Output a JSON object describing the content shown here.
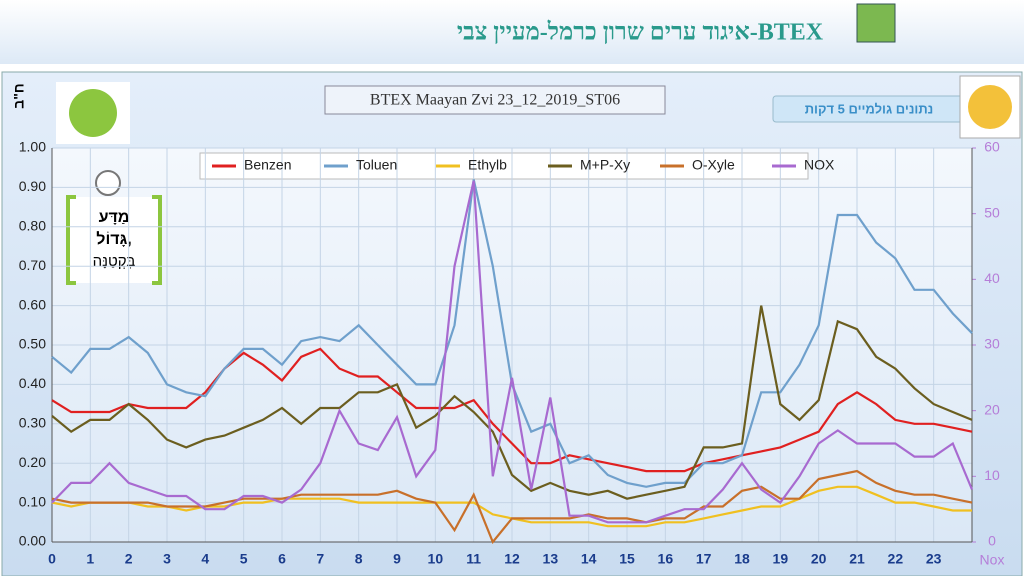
{
  "header": {
    "title": "איגוד ערים שרון כרמל-מעיין צבי-BTEX"
  },
  "button": "נתונים גולמיים 5 דקות",
  "logo_text": [
    "מַדָּע",
    "גָּדוֹל,",
    "בִּקְטַנָּה"
  ],
  "chart_data": {
    "type": "line",
    "title": "BTEX Maayan  Zvi  23_12_2019_ST06",
    "y_label": "ח\"ב",
    "y2_label": "Nox",
    "x": [
      0,
      0.5,
      1,
      1.5,
      2,
      2.5,
      3,
      3.5,
      4,
      4.5,
      5,
      5.5,
      6,
      6.5,
      7,
      7.5,
      8,
      8.5,
      9,
      9.5,
      10,
      10.5,
      11,
      11.5,
      12,
      12.5,
      13,
      13.5,
      14,
      14.5,
      15,
      15.5,
      16,
      16.5,
      17,
      17.5,
      18,
      18.5,
      19,
      19.5,
      20,
      20.5,
      21,
      21.5,
      22,
      22.5,
      23,
      23.5,
      24
    ],
    "xlim": [
      0,
      24
    ],
    "xticks": [
      0,
      1,
      2,
      3,
      4,
      5,
      6,
      7,
      8,
      9,
      10,
      11,
      12,
      13,
      14,
      15,
      16,
      17,
      18,
      19,
      20,
      21,
      22,
      23
    ],
    "ylim": [
      0,
      1
    ],
    "yticks": [
      {
        "value": 0,
        "label": "0.00"
      },
      {
        "value": 0.1,
        "label": "0.10"
      },
      {
        "value": 0.2,
        "label": "0.20"
      },
      {
        "value": 0.3,
        "label": "0.30"
      },
      {
        "value": 0.4,
        "label": "0.40"
      },
      {
        "value": 0.5,
        "label": "0.50"
      },
      {
        "value": 0.6,
        "label": "0.60"
      },
      {
        "value": 0.7,
        "label": "0.70"
      },
      {
        "value": 0.8,
        "label": "0.80"
      },
      {
        "value": 0.9,
        "label": "0.90"
      },
      {
        "value": 1,
        "label": "1.00"
      }
    ],
    "y2lim": [
      0,
      60
    ],
    "y2ticks": [
      0,
      10,
      20,
      30,
      40,
      50,
      60
    ],
    "grid": true,
    "series": [
      {
        "name": "Benzen",
        "color": "#e02020",
        "values": [
          0.36,
          0.33,
          0.33,
          0.33,
          0.35,
          0.34,
          0.34,
          0.34,
          0.38,
          0.44,
          0.48,
          0.45,
          0.41,
          0.47,
          0.49,
          0.44,
          0.42,
          0.42,
          0.38,
          0.34,
          0.34,
          0.34,
          0.36,
          0.3,
          0.25,
          0.2,
          0.2,
          0.22,
          0.21,
          0.2,
          0.19,
          0.18,
          0.18,
          0.18,
          0.2,
          0.21,
          0.22,
          0.23,
          0.24,
          0.26,
          0.28,
          0.35,
          0.38,
          0.35,
          0.31,
          0.3,
          0.3,
          0.29,
          0.28
        ]
      },
      {
        "name": "Toluen",
        "color": "#6fa0cc",
        "values": [
          0.47,
          0.43,
          0.49,
          0.49,
          0.52,
          0.48,
          0.4,
          0.38,
          0.37,
          0.44,
          0.49,
          0.49,
          0.45,
          0.51,
          0.52,
          0.51,
          0.55,
          0.5,
          0.45,
          0.4,
          0.4,
          0.55,
          0.92,
          0.7,
          0.4,
          0.28,
          0.3,
          0.2,
          0.22,
          0.17,
          0.15,
          0.14,
          0.15,
          0.15,
          0.2,
          0.2,
          0.22,
          0.38,
          0.38,
          0.45,
          0.55,
          0.83,
          0.83,
          0.76,
          0.72,
          0.64,
          0.64,
          0.58,
          0.53
        ]
      },
      {
        "name": "Ethylb",
        "color": "#f0c020",
        "values": [
          0.1,
          0.09,
          0.1,
          0.1,
          0.1,
          0.09,
          0.09,
          0.08,
          0.09,
          0.09,
          0.1,
          0.1,
          0.11,
          0.11,
          0.11,
          0.11,
          0.1,
          0.1,
          0.1,
          0.1,
          0.1,
          0.1,
          0.1,
          0.07,
          0.06,
          0.05,
          0.05,
          0.05,
          0.05,
          0.04,
          0.04,
          0.04,
          0.05,
          0.05,
          0.06,
          0.07,
          0.08,
          0.09,
          0.09,
          0.11,
          0.13,
          0.14,
          0.14,
          0.12,
          0.1,
          0.1,
          0.09,
          0.08,
          0.08
        ]
      },
      {
        "name": "M+P-Xy",
        "color": "#6b5e1f",
        "values": [
          0.32,
          0.28,
          0.31,
          0.31,
          0.35,
          0.31,
          0.26,
          0.24,
          0.26,
          0.27,
          0.29,
          0.31,
          0.34,
          0.3,
          0.34,
          0.34,
          0.38,
          0.38,
          0.4,
          0.29,
          0.32,
          0.37,
          0.33,
          0.28,
          0.17,
          0.13,
          0.15,
          0.13,
          0.12,
          0.13,
          0.11,
          0.12,
          0.13,
          0.14,
          0.24,
          0.24,
          0.25,
          0.6,
          0.35,
          0.31,
          0.36,
          0.56,
          0.54,
          0.47,
          0.44,
          0.39,
          0.35,
          0.33,
          0.31
        ]
      },
      {
        "name": "O-Xyle",
        "color": "#c8702a",
        "values": [
          0.11,
          0.1,
          0.1,
          0.1,
          0.1,
          0.1,
          0.09,
          0.09,
          0.09,
          0.1,
          0.11,
          0.11,
          0.11,
          0.12,
          0.12,
          0.12,
          0.12,
          0.12,
          0.13,
          0.11,
          0.1,
          0.03,
          0.12,
          0.0,
          0.06,
          0.06,
          0.06,
          0.06,
          0.07,
          0.06,
          0.06,
          0.05,
          0.06,
          0.06,
          0.09,
          0.09,
          0.13,
          0.14,
          0.11,
          0.11,
          0.16,
          0.17,
          0.18,
          0.15,
          0.13,
          0.12,
          0.12,
          0.11,
          0.1
        ]
      },
      {
        "name": "NOX",
        "color": "#a86ad0",
        "axis": "y2",
        "values": [
          6,
          9,
          9,
          12,
          9,
          8,
          7,
          7,
          5,
          5,
          7,
          7,
          6,
          8,
          12,
          20,
          15,
          14,
          19,
          10,
          14,
          42,
          55,
          10,
          25,
          8,
          22,
          4,
          4,
          3,
          3,
          3,
          4,
          5,
          5,
          8,
          12,
          8,
          6,
          10,
          15,
          17,
          15,
          15,
          15,
          13,
          13,
          15,
          8
        ]
      }
    ]
  }
}
